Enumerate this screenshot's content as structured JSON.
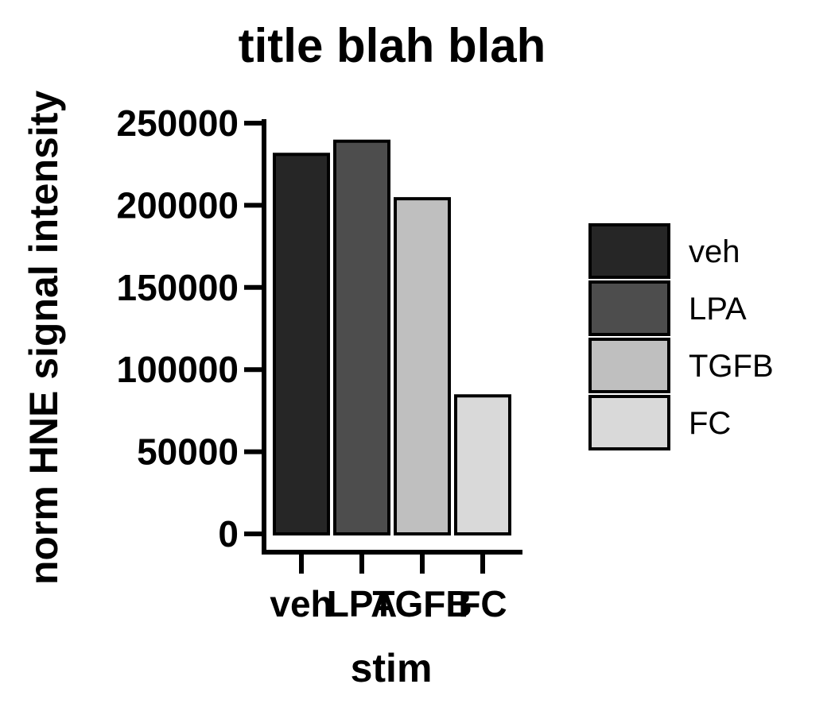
{
  "chart_data": {
    "type": "bar",
    "title": "title blah blah",
    "xlabel": "stim",
    "ylabel": "norm HNE signal intensity",
    "categories": [
      "veh",
      "LPA",
      "TGFB",
      "FC"
    ],
    "values": [
      231000,
      239000,
      204000,
      84000
    ],
    "colors": [
      "#262626",
      "#4d4d4d",
      "#bfbfbf",
      "#d9d9d9"
    ],
    "ylim": [
      0,
      250000
    ],
    "yticks": [
      0,
      50000,
      100000,
      150000,
      200000,
      250000
    ],
    "ytick_labels": [
      "0",
      "50000",
      "100000",
      "150000",
      "200000",
      "250000"
    ],
    "grid": false,
    "legend": {
      "placement": "right",
      "entries": [
        "veh",
        "LPA",
        "TGFB",
        "FC"
      ]
    }
  }
}
